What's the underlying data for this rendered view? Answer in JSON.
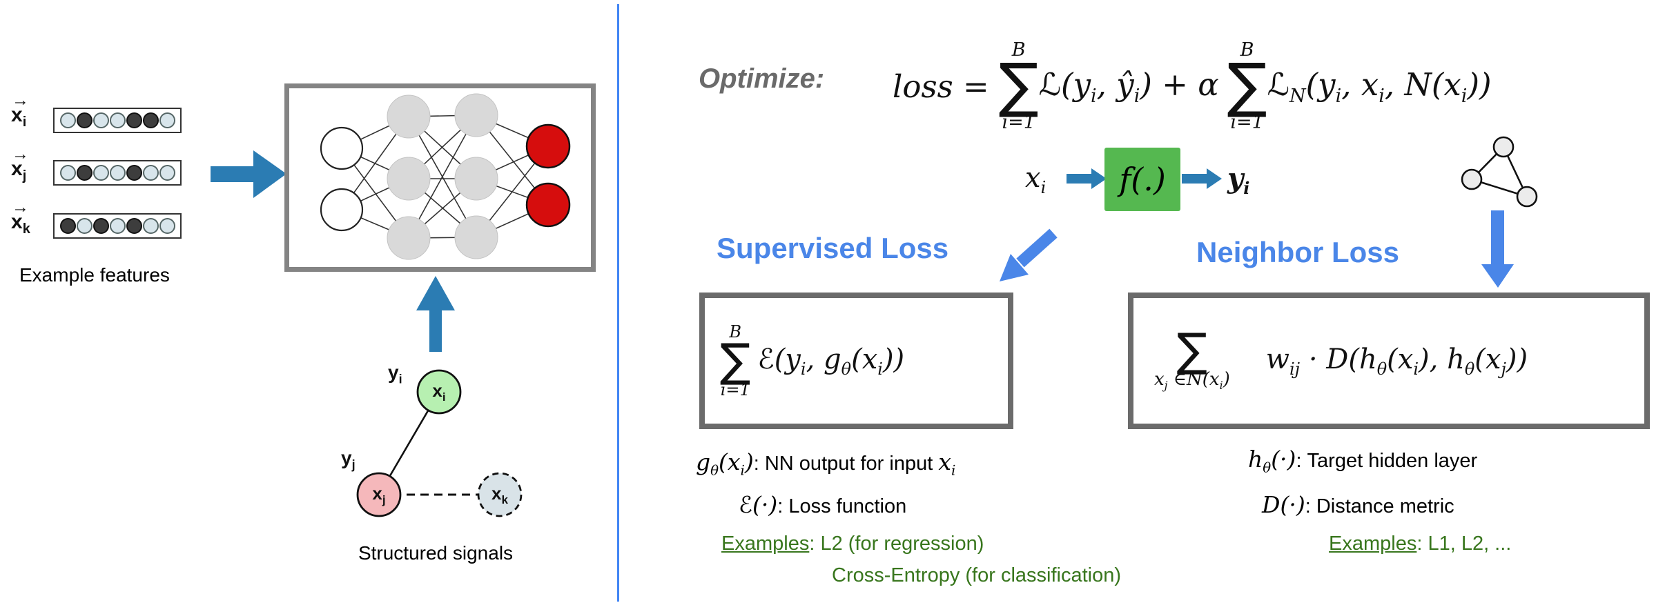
{
  "colors": {
    "accent_blue": "#4a86e8",
    "arrow_teal": "#2b7cb3",
    "divider_blue": "#4285f4",
    "green_text": "#38761d",
    "green_box": "#55b850",
    "node_red": "#d60d0d",
    "node_green": "#b7f0b1",
    "node_pink": "#f5b8bb",
    "node_bluegray": "#d9e3e8",
    "gray_node": "#d9d9d9",
    "box_border": "#6b6b6b",
    "nn_border": "#848484",
    "optimize_gray": "#6a6a6a",
    "dot_dark": "#3d3d3d",
    "dot_light": "#d8e5eb"
  },
  "left": {
    "feature_rows": [
      {
        "base": "x",
        "sub": "i",
        "arrow": "→",
        "dots": [
          0,
          1,
          0,
          0,
          1,
          1,
          0
        ]
      },
      {
        "base": "x",
        "sub": "j",
        "arrow": "→",
        "dots": [
          0,
          1,
          0,
          0,
          1,
          0,
          0
        ]
      },
      {
        "base": "x",
        "sub": "k",
        "arrow": "→",
        "dots": [
          1,
          0,
          1,
          0,
          1,
          0,
          0
        ]
      }
    ],
    "features_caption": "Example features",
    "graph_caption": "Structured signals",
    "graph": {
      "node_xi": {
        "base": "x",
        "sub": "i"
      },
      "node_xj": {
        "base": "x",
        "sub": "j"
      },
      "node_xk": {
        "base": "x",
        "sub": "k"
      },
      "label_yi": {
        "base": "y",
        "sub": "i"
      },
      "label_yj": {
        "base": "y",
        "sub": "j"
      }
    }
  },
  "right": {
    "optimize_label": "Optimize:",
    "formula": {
      "lhs": "loss =",
      "sum1": {
        "upper": "B",
        "lower": "i=1",
        "sigma": "∑"
      },
      "term1_html": "ℒ(y<sub>i</sub>, ŷ<sub>i</sub>) + α",
      "sum2": {
        "upper": "B",
        "lower": "i=1",
        "sigma": "∑"
      },
      "term2_html": "ℒ<sub>N</sub>(y<sub>i</sub>, x<sub>i</sub>, N(x<sub>i</sub>))"
    },
    "flow": {
      "input_html": "x<sub>i</sub>",
      "f_label": "f(.)",
      "output_html": "y<sub>i</sub>"
    },
    "supervised": {
      "heading": "Supervised Loss",
      "box_sum": {
        "upper": "B",
        "lower": "i=1",
        "sigma": "∑"
      },
      "box_term_html": "ℰ(y<sub>i</sub>, g<sub>θ</sub>(x<sub>i</sub>))",
      "note1_math_html": "g<sub>θ</sub>(x<sub>i</sub>)",
      "note1_text": ": NN output for input ",
      "note1_tail_html": "x<sub>i</sub>",
      "note2_math_html": "ℰ(·)",
      "note2_text": ": Loss function",
      "examples_label": "Examples",
      "examples_text": ": L2 (for regression)",
      "examples_line2": "Cross-Entropy (for classification)"
    },
    "neighbor": {
      "heading": "Neighbor Loss",
      "box_sum_sigma": "∑",
      "box_sum_lower_html": "x<sub>j</sub> ∈N(x<sub>i</sub>)",
      "box_term_html": "w<sub>ij</sub> · D(h<sub>θ</sub>(x<sub>i</sub>), h<sub>θ</sub>(x<sub>j</sub>))",
      "note1_math_html": "h<sub>θ</sub>(·)",
      "note1_text": ": Target hidden layer",
      "note2_math_html": "D(·)",
      "note2_text": ": Distance metric",
      "examples_label": "Examples",
      "examples_text": ": L1, L2, ..."
    }
  }
}
